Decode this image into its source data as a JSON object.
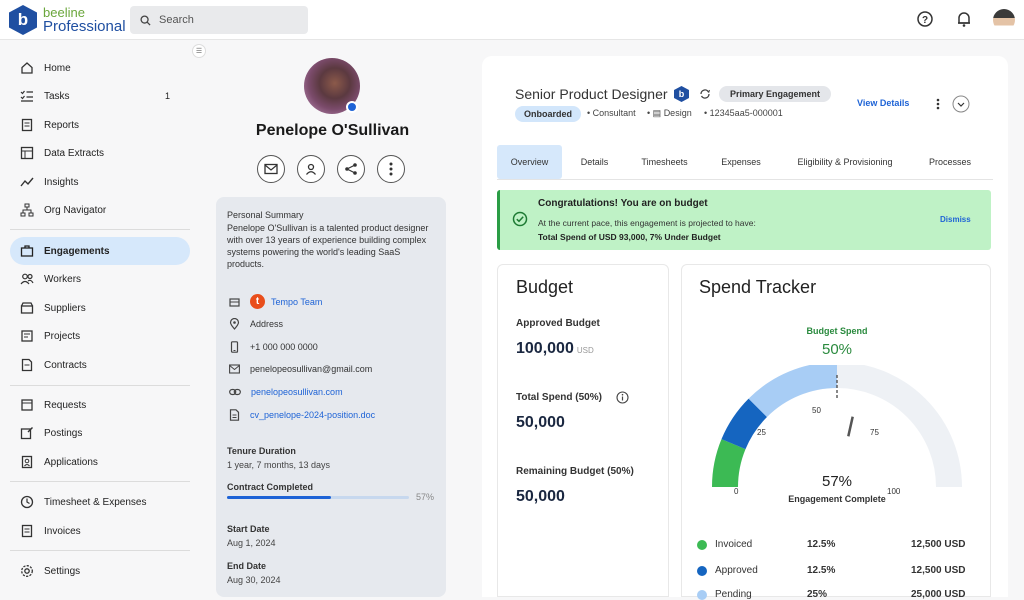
{
  "brand": {
    "top": "beeline",
    "bottom": "Professional"
  },
  "search": {
    "placeholder": "Search"
  },
  "nav": {
    "items": [
      {
        "label": "Home",
        "icon": "home-icon"
      },
      {
        "label": "Tasks",
        "icon": "tasks-icon",
        "badge": "1"
      },
      {
        "label": "Reports",
        "icon": "reports-icon"
      },
      {
        "label": "Data Extracts",
        "icon": "data-extracts-icon"
      },
      {
        "label": "Insights",
        "icon": "insights-icon"
      },
      {
        "label": "Org Navigator",
        "icon": "org-navigator-icon"
      },
      {
        "label": "Engagements",
        "icon": "engagements-icon",
        "active": true
      },
      {
        "label": "Workers",
        "icon": "workers-icon"
      },
      {
        "label": "Suppliers",
        "icon": "suppliers-icon"
      },
      {
        "label": "Projects",
        "icon": "projects-icon"
      },
      {
        "label": "Contracts",
        "icon": "contracts-icon"
      },
      {
        "label": "Requests",
        "icon": "requests-icon"
      },
      {
        "label": "Postings",
        "icon": "postings-icon"
      },
      {
        "label": "Applications",
        "icon": "applications-icon"
      },
      {
        "label": "Timesheet & Expenses",
        "icon": "timesheet-icon"
      },
      {
        "label": "Invoices",
        "icon": "invoices-icon"
      },
      {
        "label": "Settings",
        "icon": "settings-icon"
      }
    ]
  },
  "profile": {
    "name": "Penelope O'Sullivan",
    "summary_label": "Personal Summary",
    "summary": "Penelope O'Sullivan is a talented product designer with over 13 years of experience building complex systems powering the world's leading SaaS products.",
    "team": "Tempo Team",
    "address": "Address",
    "phone": "+1 000 000 0000",
    "email": "penelopeosullivan@gmail.com",
    "website": "penelopeosullivan.com",
    "file": "cv_penelope-2024-position.doc",
    "tenure_label": "Tenure Duration",
    "tenure": "1 year, 7 months, 13 days",
    "contract_label": "Contract Completed",
    "contract_pct": "57%",
    "contract_fraction": 0.57,
    "start_label": "Start Date",
    "start": "Aug 1, 2024",
    "end_label": "End Date",
    "end": "Aug 30, 2024"
  },
  "engagement": {
    "title": "Senior Product Designer",
    "primary": "Primary Engagement",
    "status": "Onboarded",
    "type": "Consultant",
    "dept": "Design",
    "id": "12345aa5-000001",
    "view_details": "View Details"
  },
  "tabs": [
    "Overview",
    "Details",
    "Timesheets",
    "Expenses",
    "Eligibility & Provisioning",
    "Processes"
  ],
  "banner": {
    "title": "Congratulations! You are on budget",
    "line": "At the current pace, this engagement is projected to have:",
    "bold": "Total Spend of USD 93,000, 7% Under Budget",
    "dismiss": "Dismiss"
  },
  "budget": {
    "title": "Budget",
    "approved_label": "Approved Budget",
    "approved": "100,000",
    "currency": "USD",
    "spend_label": "Total Spend (50%)",
    "spend": "50,000",
    "remaining_label": "Remaining Budget (50%)",
    "remaining": "50,000"
  },
  "tracker": {
    "title": "Spend Tracker",
    "budget_spend_label": "Budget Spend",
    "budget_spend": "50%",
    "complete": "57%",
    "complete_label": "Engagement Complete",
    "ticks": [
      "0",
      "25",
      "50",
      "75",
      "100"
    ],
    "legend": [
      {
        "label": "Invoiced",
        "pct": "12.5%",
        "amount": "12,500 USD",
        "color": "#3cba54"
      },
      {
        "label": "Approved",
        "pct": "12.5%",
        "amount": "12,500 USD",
        "color": "#1565c0"
      },
      {
        "label": "Pending",
        "pct": "25%",
        "amount": "25,000 USD",
        "color": "#a8cdf5"
      }
    ]
  }
}
